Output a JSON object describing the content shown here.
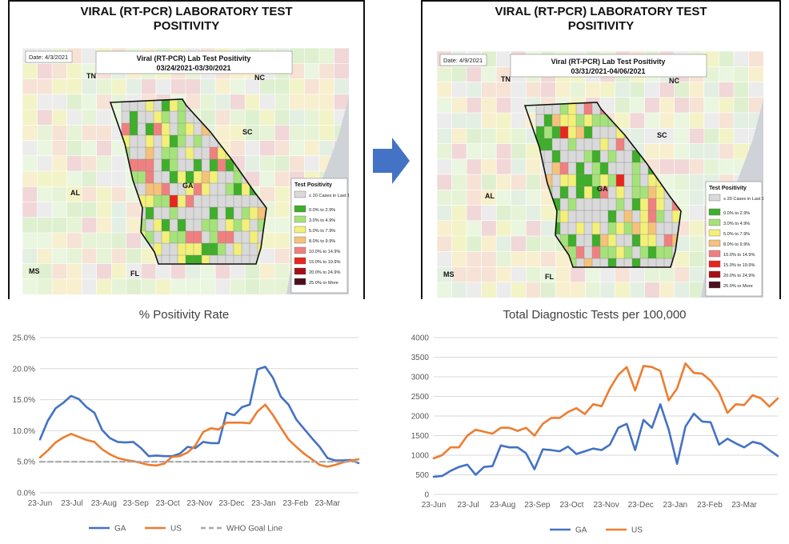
{
  "left_map": {
    "header": "VIRAL (RT-PCR) LABORATORY TEST\nPOSITIVITY",
    "date": "Date: 4/3/2021",
    "title": "Viral (RT-PCR) Lab Test Positivity",
    "range": "03/24/2021-03/30/2021",
    "states": [
      "TN",
      "NC",
      "SC",
      "AL",
      "GA",
      "FL",
      "MS"
    ]
  },
  "right_map": {
    "header": "VIRAL (RT-PCR) LABORATORY TEST\nPOSITIVITY",
    "date": "Date: 4/9/2021",
    "title": "Viral (RT-PCR) Lab Test Positivity",
    "range": "03/31/2021-04/06/2021",
    "states": [
      "TN",
      "NC",
      "SC",
      "AL",
      "GA",
      "FL",
      "MS"
    ]
  },
  "map_legend": {
    "title": "Test Positivity",
    "items": [
      {
        "label": "≤ 20 Cases in Last 14 Days",
        "color": "#d9d9d9"
      },
      {
        "label": "0.0% to 2.9%",
        "color": "#3fae2a"
      },
      {
        "label": "3.0% to 4.9%",
        "color": "#a6e27a"
      },
      {
        "label": "5.0% to 7.9%",
        "color": "#f3f07a"
      },
      {
        "label": "8.0% to 9.9%",
        "color": "#f4c27a"
      },
      {
        "label": "10.0% to 14.9%",
        "color": "#f08080"
      },
      {
        "label": "15.0% to 19.9%",
        "color": "#e8261e"
      },
      {
        "label": "20.0% to 24.9%",
        "color": "#a50f15"
      },
      {
        "label": "25.0% or More",
        "color": "#4a0f1f"
      }
    ]
  },
  "arrow_color": "#4472c4",
  "chart_data": [
    {
      "type": "line",
      "title": "% Positivity Rate",
      "x_ticks": [
        "23-Jun",
        "23-Jul",
        "23-Aug",
        "23-Sep",
        "23-Oct",
        "23-Nov",
        "23-Dec",
        "23-Jan",
        "23-Feb",
        "23-Mar"
      ],
      "y_ticks": [
        "0.0%",
        "5.0%",
        "10.0%",
        "15.0%",
        "20.0%",
        "25.0%"
      ],
      "ylim": [
        0,
        25
      ],
      "weeks": 42,
      "series": [
        {
          "name": "GA",
          "color": "#4472c4",
          "dash": "none",
          "values": [
            8.6,
            11.6,
            13.6,
            14.5,
            15.6,
            15.1,
            13.8,
            12.9,
            10.1,
            8.8,
            8.2,
            8.1,
            8.2,
            7.2,
            5.9,
            6.0,
            5.9,
            5.9,
            6.3,
            7.4,
            7.2,
            8.2,
            8.0,
            8.0,
            12.9,
            12.5,
            13.8,
            14.2,
            19.9,
            20.3,
            18.5,
            15.5,
            14.2,
            11.8,
            10.3,
            8.8,
            7.4,
            5.6,
            5.2,
            5.2,
            5.3,
            4.8
          ]
        },
        {
          "name": "US",
          "color": "#ed7d31",
          "dash": "none",
          "values": [
            5.7,
            6.8,
            8.1,
            8.9,
            9.5,
            9.0,
            8.5,
            8.2,
            7.0,
            6.2,
            5.6,
            5.3,
            5.1,
            4.8,
            4.5,
            4.4,
            4.7,
            5.8,
            5.9,
            6.5,
            7.6,
            9.8,
            10.4,
            10.2,
            11.3,
            11.3,
            11.3,
            11.2,
            13.1,
            14.2,
            12.5,
            10.5,
            8.6,
            7.4,
            6.3,
            5.4,
            4.5,
            4.2,
            4.5,
            4.9,
            5.2,
            5.4
          ]
        },
        {
          "name": "WHO Goal Line",
          "color": "#a6a6a6",
          "dash": "6,4",
          "values": [
            5,
            5,
            5,
            5,
            5,
            5,
            5,
            5,
            5,
            5,
            5,
            5,
            5,
            5,
            5,
            5,
            5,
            5,
            5,
            5,
            5,
            5,
            5,
            5,
            5,
            5,
            5,
            5,
            5,
            5,
            5,
            5,
            5,
            5,
            5,
            5,
            5,
            5,
            5,
            5,
            5,
            5
          ]
        }
      ]
    },
    {
      "type": "line",
      "title": "Total Diagnostic Tests per 100,000",
      "x_ticks": [
        "23-Jun",
        "23-Jul",
        "23-Aug",
        "23-Sep",
        "23-Oct",
        "23-Nov",
        "23-Dec",
        "23-Jan",
        "23-Feb",
        "23-Mar"
      ],
      "y_ticks": [
        "0",
        "500",
        "1000",
        "1500",
        "2000",
        "2500",
        "3000",
        "3500",
        "4000"
      ],
      "ylim": [
        0,
        4000
      ],
      "weeks": 42,
      "series": [
        {
          "name": "GA",
          "color": "#4472c4",
          "dash": "none",
          "values": [
            450,
            470,
            600,
            700,
            760,
            500,
            700,
            720,
            1250,
            1200,
            1200,
            1050,
            640,
            1150,
            1130,
            1100,
            1220,
            1030,
            1100,
            1170,
            1130,
            1270,
            1700,
            1800,
            1130,
            1900,
            1700,
            2300,
            1650,
            780,
            1730,
            2060,
            1860,
            1840,
            1270,
            1420,
            1300,
            1200,
            1340,
            1290,
            1130,
            980
          ]
        },
        {
          "name": "US",
          "color": "#ed7d31",
          "dash": "none",
          "values": [
            920,
            1000,
            1200,
            1200,
            1500,
            1650,
            1600,
            1550,
            1700,
            1700,
            1620,
            1700,
            1500,
            1800,
            1950,
            1950,
            2100,
            2200,
            2050,
            2300,
            2250,
            2700,
            3050,
            3250,
            2650,
            3280,
            3250,
            3150,
            2400,
            2700,
            3340,
            3100,
            3080,
            2900,
            2600,
            2080,
            2300,
            2280,
            2530,
            2450,
            2240,
            2450
          ]
        }
      ]
    }
  ]
}
